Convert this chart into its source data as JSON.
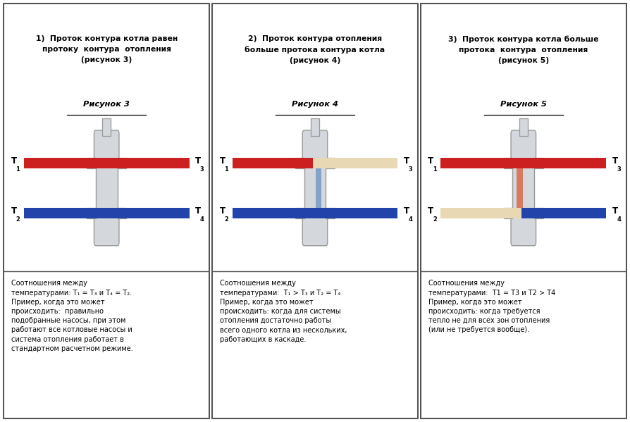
{
  "bg_color": "#ffffff",
  "panel_titles": [
    "1)  Проток контура котла равен\nпротоку  контура  отопления\n(рисунок 3)",
    "2)  Проток контура отопления\nбольше протока контура котла\n(рисунок 4)",
    "3)  Проток контура котла больше\nпротока  контура  отопления\n(рисунок 5)"
  ],
  "figure_labels": [
    "Рисунок 3",
    "Рисунок 4",
    "Рисунок 5"
  ],
  "bottom_texts": [
    "Соотношения между\nтемпературами: T₁ = T₃ и T₄ = T₂.\nПример, когда это может\nпроисходить:  правильно\nподобранные насосы, при этом\nработают все котловые насосы и\nсистема отопления работает в\nстандартном расчетном режиме.",
    "Соотношения между\nтемпературами:  T₁ > T₃ и T₂ = T₄\nПример, когда это может\nпроисходить: когда для системы\nотопления достаточно работы\nвсего одного котла из нескольких,\nработающих в каскаде.",
    "Соотношения между\nтемпературами:  T1 = T3 и T2 > T4\nПример, когда это может\nпроисходить: когда требуется\nтепло не для всех зон отопления\n(или не требуется вообще)."
  ],
  "red_color": "#cc2020",
  "blue_color": "#2244aa",
  "beige_color": "#e8d8b4",
  "body_color": "#d4d8dc",
  "body_edge": "#999999"
}
